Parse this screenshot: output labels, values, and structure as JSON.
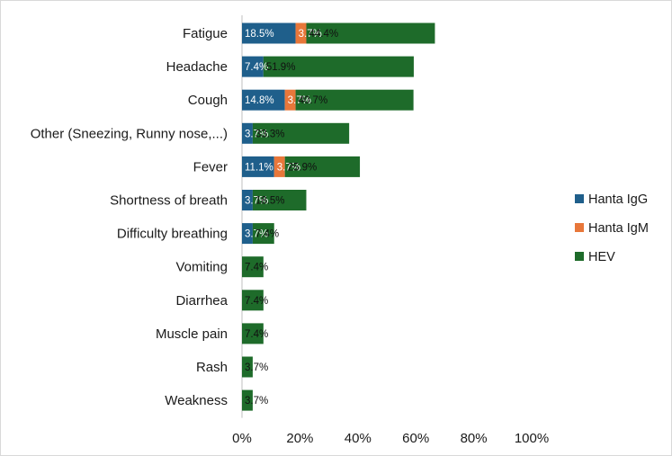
{
  "chart_data": {
    "type": "bar",
    "orientation": "horizontal",
    "stacked": true,
    "categories": [
      "Fatigue",
      "Headache",
      "Cough",
      "Other (Sneezing, Runny nose,...)",
      "Fever",
      "Shortness of breath",
      "Difficulty breathing",
      "Vomiting",
      "Diarrhea",
      "Muscle pain",
      "Rash",
      "Weakness"
    ],
    "series": [
      {
        "name": "Hanta IgG",
        "color": "#1f5f8b",
        "values": [
          18.5,
          7.4,
          14.8,
          3.7,
          11.1,
          3.7,
          3.7,
          0,
          0,
          0,
          0,
          0
        ],
        "labels": [
          "18.5%",
          "7.4%",
          "14.8%",
          "3.7%",
          "11.1%",
          "3.7%",
          "3.7%",
          "",
          "",
          "",
          "",
          ""
        ]
      },
      {
        "name": "Hanta IgM",
        "color": "#e8773a",
        "values": [
          3.7,
          0,
          3.7,
          0,
          3.7,
          0,
          0,
          0,
          0,
          0,
          0,
          0
        ],
        "labels": [
          "3.7%",
          "",
          "3.7%",
          "",
          "3.7%",
          "",
          "",
          "",
          "",
          "",
          "",
          ""
        ]
      },
      {
        "name": "HEV",
        "color": "#1e6b2a",
        "values": [
          44.4,
          51.9,
          40.7,
          33.3,
          25.9,
          18.5,
          7.4,
          7.4,
          7.4,
          7.4,
          3.7,
          3.7
        ],
        "labels": [
          "44.4%",
          "51.9%",
          "40.7%",
          "33.3%",
          "25.9%",
          "18.5%",
          "7.4%",
          "7.4%",
          "7.4%",
          "7.4%",
          "3.7%",
          "3.7%"
        ]
      }
    ],
    "xlim": [
      0,
      100
    ],
    "x_ticks": [
      "0%",
      "20%",
      "40%",
      "60%",
      "80%",
      "100%"
    ],
    "grid": false,
    "legend_position": "right"
  }
}
